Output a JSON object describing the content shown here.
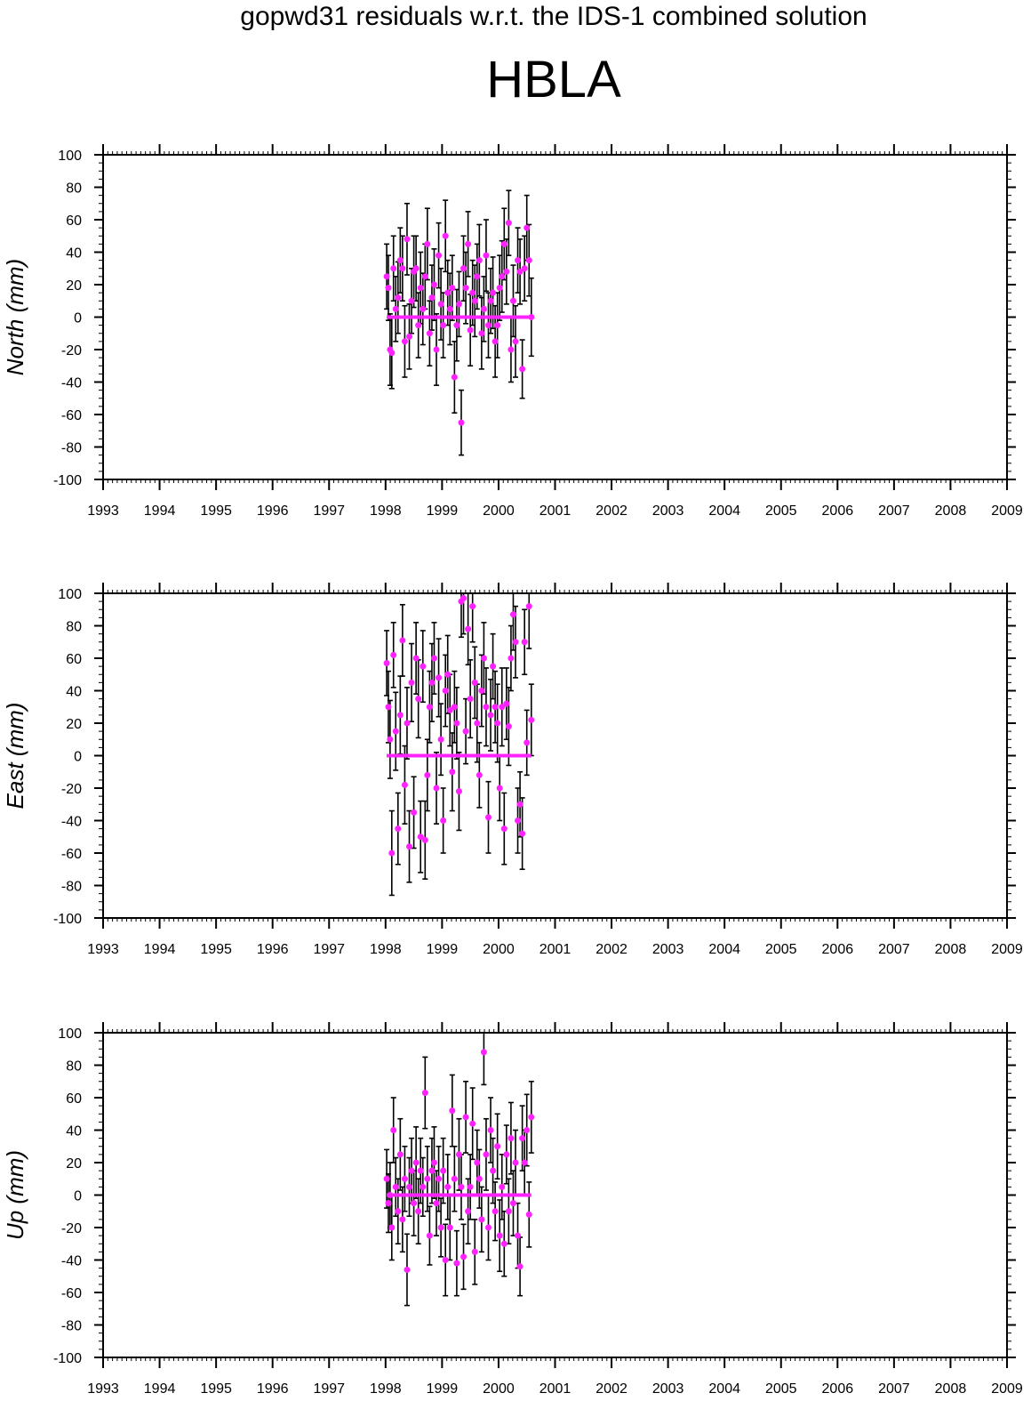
{
  "title": "gopwd31 residuals w.r.t. the IDS-1 combined solution",
  "station": "HBLA",
  "colors": {
    "marker": "#ff22ff",
    "zero_line": "#ff22ff",
    "error_bar": "#000000",
    "axes": "#000000"
  },
  "chart_data": [
    {
      "type": "scatter",
      "ylabel": "North (mm)",
      "xlim": [
        1993,
        2009
      ],
      "ylim": [
        -100,
        100
      ],
      "x_ticks": [
        "1993",
        "1994",
        "1995",
        "1996",
        "1997",
        "1998",
        "1999",
        "2000",
        "2001",
        "2002",
        "2003",
        "2004",
        "2005",
        "2006",
        "2007",
        "2008",
        "2009"
      ],
      "y_ticks": [
        "100",
        "80",
        "60",
        "40",
        "20",
        "0",
        "-20",
        "-40",
        "-60",
        "-80",
        "-100"
      ],
      "grid": false,
      "zero_line": true,
      "series": [
        {
          "x": [
            1998.02,
            1998.05,
            1998.08,
            1998.11,
            1998.14,
            1998.18,
            1998.22,
            1998.26,
            1998.3,
            1998.34,
            1998.38,
            1998.42,
            1998.46,
            1998.5,
            1998.54,
            1998.58,
            1998.62,
            1998.66,
            1998.7,
            1998.74,
            1998.78,
            1998.82,
            1998.86,
            1998.9,
            1998.94,
            1998.98,
            1999.02,
            1999.06,
            1999.1,
            1999.14,
            1999.18,
            1999.22,
            1999.26,
            1999.3,
            1999.34,
            1999.38,
            1999.42,
            1999.46,
            1999.5,
            1999.54,
            1999.58,
            1999.62,
            1999.66,
            1999.7,
            1999.74,
            1999.78,
            1999.82,
            1999.86,
            1999.9,
            1999.94,
            1999.98,
            2000.02,
            2000.06,
            2000.1,
            2000.14,
            2000.18,
            2000.22,
            2000.26,
            2000.3,
            2000.34,
            2000.38,
            2000.42,
            2000.46,
            2000.5,
            2000.54,
            2000.58
          ],
          "y": [
            25,
            18,
            -20,
            -22,
            30,
            5,
            12,
            35,
            30,
            -15,
            48,
            -12,
            10,
            28,
            30,
            -5,
            18,
            5,
            25,
            45,
            -10,
            12,
            20,
            -20,
            38,
            8,
            -5,
            50,
            15,
            5,
            18,
            -37,
            -5,
            8,
            -65,
            30,
            18,
            45,
            -8,
            15,
            10,
            25,
            35,
            -10,
            5,
            38,
            -5,
            10,
            15,
            -15,
            -5,
            18,
            25,
            45,
            28,
            58,
            -20,
            10,
            -15,
            35,
            28,
            -32,
            30,
            55,
            35,
            0
          ],
          "err": [
            20,
            20,
            22,
            22,
            20,
            20,
            22,
            20,
            20,
            22,
            22,
            20,
            20,
            22,
            20,
            20,
            22,
            22,
            20,
            22,
            20,
            20,
            22,
            22,
            20,
            22,
            20,
            22,
            20,
            22,
            20,
            22,
            22,
            20,
            20,
            20,
            22,
            20,
            22,
            20,
            22,
            20,
            22,
            22,
            20,
            22,
            20,
            20,
            22,
            22,
            20,
            20,
            22,
            22,
            20,
            20,
            20,
            22,
            22,
            20,
            20,
            18,
            20,
            20,
            22,
            24
          ]
        }
      ]
    },
    {
      "type": "scatter",
      "ylabel": "East (mm)",
      "xlim": [
        1993,
        2009
      ],
      "ylim": [
        -100,
        100
      ],
      "x_ticks": [
        "1993",
        "1994",
        "1995",
        "1996",
        "1997",
        "1998",
        "1999",
        "2000",
        "2001",
        "2002",
        "2003",
        "2004",
        "2005",
        "2006",
        "2007",
        "2008",
        "2009"
      ],
      "y_ticks": [
        "100",
        "80",
        "60",
        "40",
        "20",
        "0",
        "-20",
        "-40",
        "-60",
        "-80",
        "-100"
      ],
      "grid": false,
      "zero_line": true,
      "series": [
        {
          "x": [
            1998.02,
            1998.05,
            1998.08,
            1998.11,
            1998.14,
            1998.18,
            1998.22,
            1998.26,
            1998.3,
            1998.34,
            1998.38,
            1998.42,
            1998.46,
            1998.5,
            1998.54,
            1998.58,
            1998.62,
            1998.66,
            1998.7,
            1998.74,
            1998.78,
            1998.82,
            1998.86,
            1998.9,
            1998.94,
            1998.98,
            1999.02,
            1999.06,
            1999.1,
            1999.14,
            1999.18,
            1999.22,
            1999.26,
            1999.3,
            1999.34,
            1999.38,
            1999.42,
            1999.46,
            1999.5,
            1999.54,
            1999.58,
            1999.62,
            1999.66,
            1999.7,
            1999.74,
            1999.78,
            1999.82,
            1999.86,
            1999.9,
            1999.94,
            1999.98,
            2000.02,
            2000.06,
            2000.1,
            2000.14,
            2000.18,
            2000.22,
            2000.26,
            2000.3,
            2000.34,
            2000.38,
            2000.42,
            2000.46,
            2000.5,
            2000.54,
            2000.58
          ],
          "y": [
            57,
            30,
            10,
            -60,
            62,
            15,
            -45,
            25,
            71,
            -18,
            20,
            -56,
            45,
            -35,
            60,
            35,
            -50,
            55,
            -52,
            -12,
            30,
            45,
            60,
            -20,
            48,
            10,
            -40,
            40,
            50,
            28,
            -10,
            30,
            20,
            -22,
            95,
            97,
            15,
            78,
            35,
            92,
            45,
            20,
            -12,
            40,
            60,
            30,
            -38,
            25,
            55,
            30,
            20,
            -20,
            30,
            -45,
            32,
            18,
            60,
            87,
            70,
            -40,
            -30,
            -48,
            70,
            8,
            92,
            22
          ],
          "err": [
            20,
            22,
            24,
            26,
            20,
            24,
            22,
            24,
            22,
            24,
            22,
            22,
            24,
            22,
            22,
            24,
            22,
            22,
            24,
            22,
            22,
            24,
            22,
            22,
            24,
            22,
            20,
            22,
            24,
            22,
            24,
            22,
            22,
            24,
            22,
            22,
            20,
            22,
            24,
            22,
            22,
            24,
            20,
            22,
            22,
            24,
            22,
            22,
            20,
            22,
            24,
            20,
            24,
            22,
            22,
            24,
            20,
            22,
            22,
            20,
            20,
            22,
            20,
            20,
            26,
            22
          ]
        }
      ]
    },
    {
      "type": "scatter",
      "ylabel": "Up (mm)",
      "xlim": [
        1993,
        2009
      ],
      "ylim": [
        -100,
        100
      ],
      "x_ticks": [
        "1993",
        "1994",
        "1995",
        "1996",
        "1997",
        "1998",
        "1999",
        "2000",
        "2001",
        "2002",
        "2003",
        "2004",
        "2005",
        "2006",
        "2007",
        "2008",
        "2009"
      ],
      "y_ticks": [
        "100",
        "80",
        "60",
        "40",
        "20",
        "0",
        "-20",
        "-40",
        "-60",
        "-80",
        "-100"
      ],
      "grid": false,
      "zero_line": true,
      "series": [
        {
          "x": [
            1998.02,
            1998.05,
            1998.08,
            1998.11,
            1998.14,
            1998.18,
            1998.22,
            1998.26,
            1998.3,
            1998.34,
            1998.38,
            1998.42,
            1998.46,
            1998.5,
            1998.54,
            1998.58,
            1998.62,
            1998.66,
            1998.7,
            1998.74,
            1998.78,
            1998.82,
            1998.86,
            1998.9,
            1998.94,
            1998.98,
            1999.02,
            1999.06,
            1999.1,
            1999.14,
            1999.18,
            1999.22,
            1999.26,
            1999.3,
            1999.34,
            1999.38,
            1999.42,
            1999.46,
            1999.5,
            1999.54,
            1999.58,
            1999.62,
            1999.66,
            1999.7,
            1999.74,
            1999.78,
            1999.82,
            1999.86,
            1999.9,
            1999.94,
            1999.98,
            2000.02,
            2000.06,
            2000.1,
            2000.14,
            2000.18,
            2000.22,
            2000.26,
            2000.3,
            2000.34,
            2000.38,
            2000.42,
            2000.46,
            2000.5,
            2000.54,
            2000.58
          ],
          "y": [
            10,
            -5,
            0,
            -20,
            40,
            5,
            -10,
            25,
            -15,
            10,
            -46,
            5,
            15,
            -5,
            20,
            -10,
            15,
            5,
            63,
            10,
            -25,
            15,
            20,
            -5,
            10,
            -20,
            15,
            -40,
            5,
            -20,
            52,
            10,
            -42,
            25,
            5,
            -38,
            48,
            -10,
            5,
            44,
            -35,
            20,
            10,
            -15,
            88,
            25,
            -20,
            40,
            15,
            -10,
            30,
            -25,
            5,
            -30,
            25,
            -10,
            35,
            -5,
            20,
            -25,
            -44,
            35,
            20,
            40,
            -12,
            48
          ],
          "err": [
            18,
            18,
            20,
            20,
            20,
            18,
            20,
            22,
            20,
            20,
            22,
            18,
            20,
            20,
            22,
            20,
            20,
            18,
            22,
            20,
            18,
            20,
            22,
            20,
            20,
            18,
            20,
            22,
            20,
            20,
            22,
            20,
            20,
            22,
            20,
            20,
            22,
            20,
            20,
            22,
            20,
            20,
            18,
            20,
            20,
            22,
            20,
            20,
            20,
            18,
            20,
            22,
            20,
            20,
            18,
            20,
            22,
            20,
            20,
            20,
            18,
            20,
            20,
            22,
            20,
            22
          ]
        }
      ]
    }
  ]
}
